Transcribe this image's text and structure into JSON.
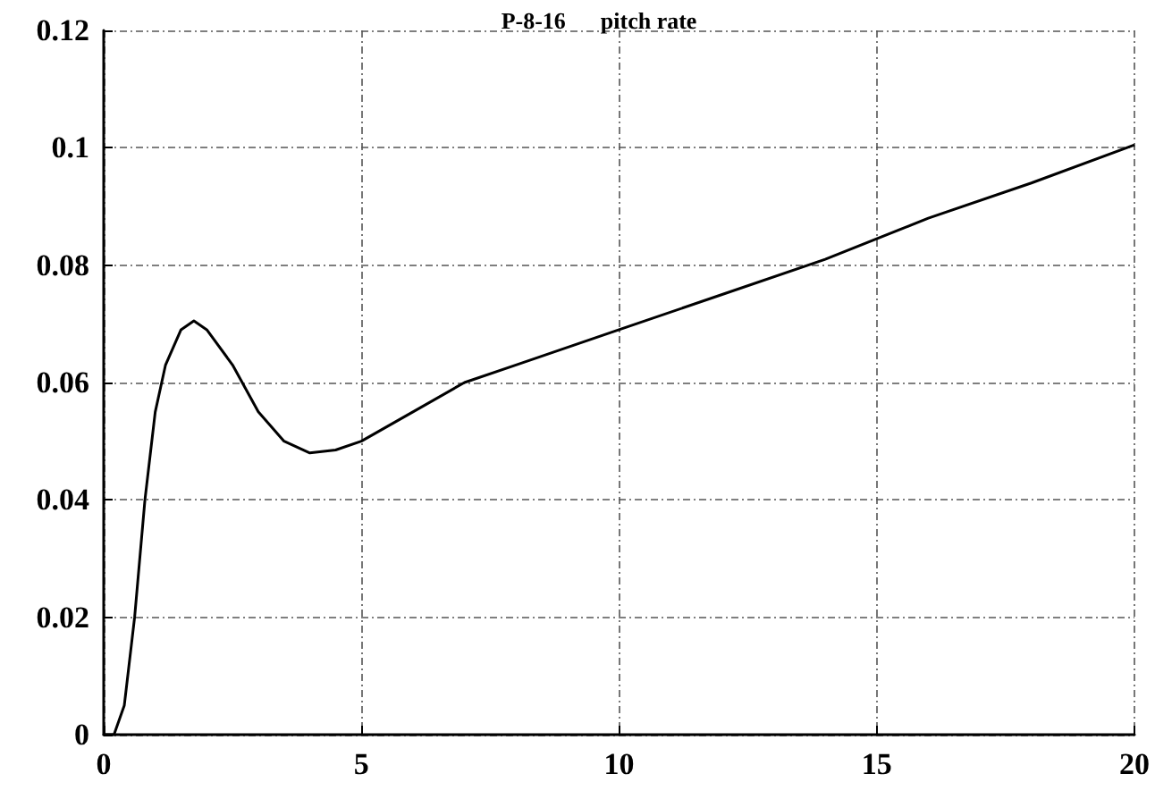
{
  "chart_data": {
    "type": "line",
    "title": "P-8-16      pitch rate",
    "x": [
      0,
      0.2,
      0.4,
      0.6,
      0.8,
      1.0,
      1.2,
      1.5,
      1.75,
      2.0,
      2.5,
      3.0,
      3.5,
      4.0,
      4.5,
      5,
      6,
      7,
      8,
      9,
      10,
      12,
      14,
      16,
      18,
      20
    ],
    "series": [
      {
        "color": "#000000",
        "values": [
          0,
          0,
          0.005,
          0.02,
          0.04,
          0.055,
          0.063,
          0.069,
          0.0705,
          0.069,
          0.063,
          0.055,
          0.05,
          0.048,
          0.0485,
          0.05,
          0.055,
          0.06,
          0.063,
          0.066,
          0.069,
          0.075,
          0.081,
          0.088,
          0.094,
          0.1005
        ]
      }
    ],
    "xlim": [
      0,
      20
    ],
    "xticks": [
      0,
      5,
      10,
      15,
      20
    ],
    "ylim": [
      0,
      0.12
    ],
    "yticks": [
      0,
      0.02,
      0.04,
      0.06,
      0.08,
      0.1,
      0.12
    ],
    "grid": true,
    "marker": "none",
    "line_style": "solid"
  }
}
